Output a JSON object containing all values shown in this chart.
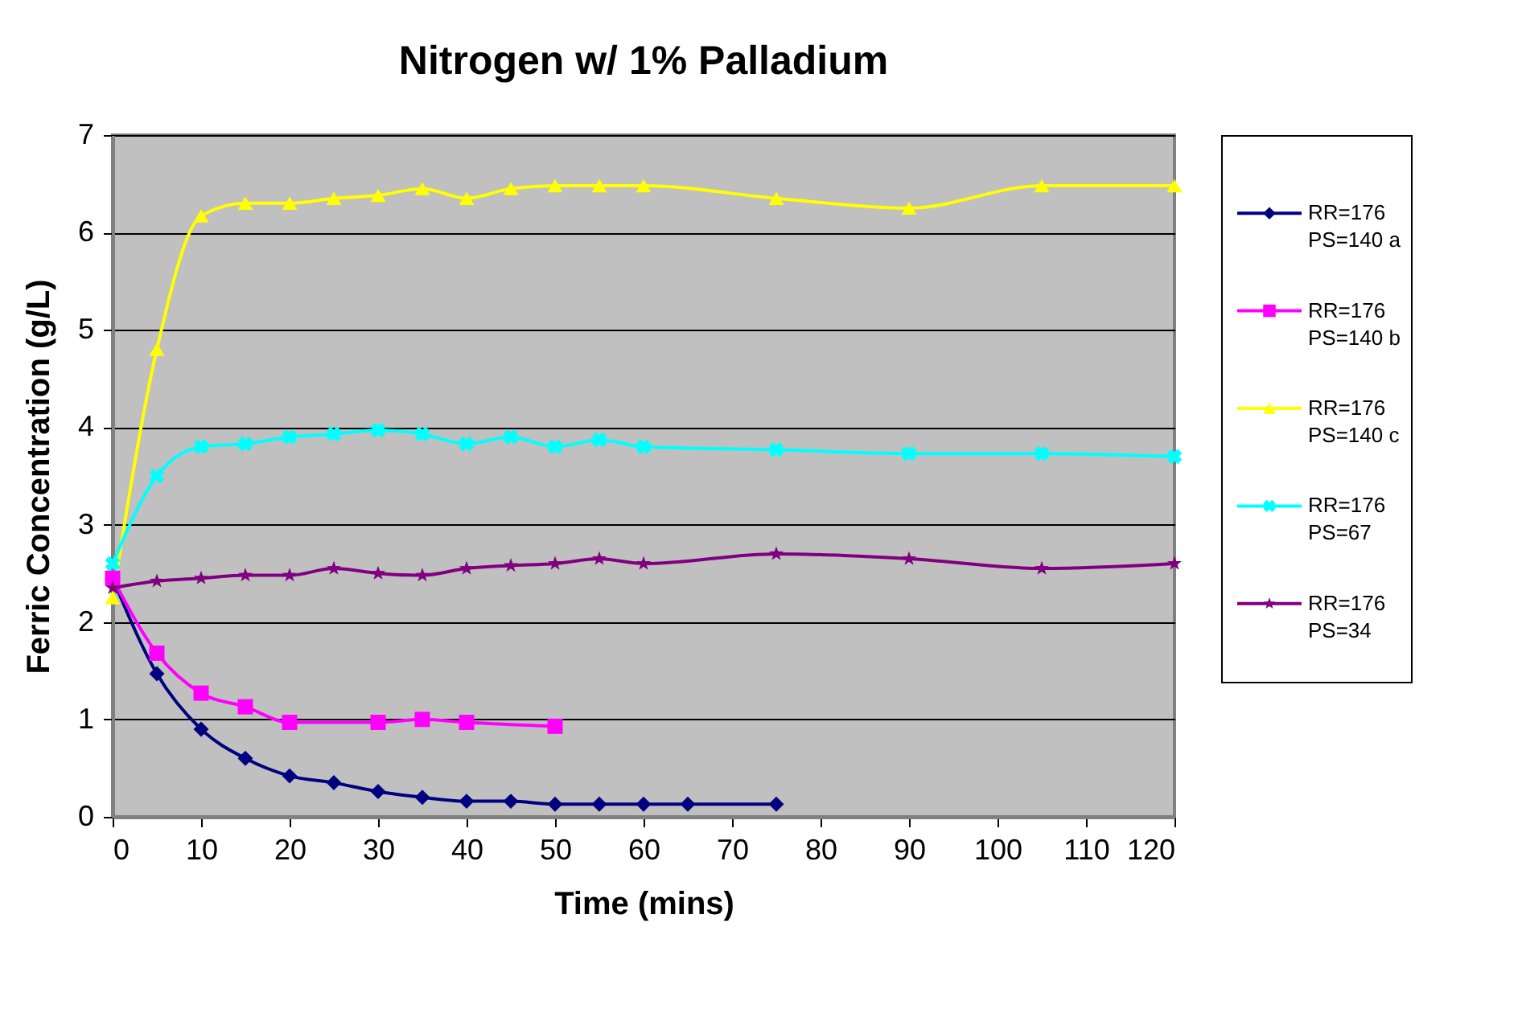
{
  "chart_data": {
    "type": "line",
    "title": "Nitrogen w/ 1% Palladium",
    "xlabel": "Time (mins)",
    "ylabel": "Ferric Concentration (g/L)",
    "xlim": [
      0,
      120
    ],
    "xticks": [
      0,
      10,
      20,
      30,
      40,
      50,
      60,
      70,
      80,
      90,
      100,
      110,
      120
    ],
    "ylim": [
      0,
      7
    ],
    "yticks": [
      0,
      1,
      2,
      3,
      4,
      5,
      6,
      7
    ],
    "grid": "y",
    "legend": "right",
    "series": [
      {
        "name": "RR=176\nPS=140 a",
        "color": "#000080",
        "marker": "diamond",
        "x": [
          0,
          5,
          10,
          15,
          20,
          25,
          30,
          35,
          40,
          45,
          50,
          55,
          60,
          65,
          75
        ],
        "values": [
          2.45,
          1.47,
          0.9,
          0.6,
          0.42,
          0.35,
          0.26,
          0.2,
          0.16,
          0.16,
          0.13,
          0.13,
          0.13,
          0.13,
          0.13
        ]
      },
      {
        "name": "RR=176\nPS=140 b",
        "color": "#ff00ff",
        "marker": "square",
        "x": [
          0,
          5,
          10,
          15,
          20,
          30,
          35,
          40,
          50
        ],
        "values": [
          2.45,
          1.68,
          1.27,
          1.13,
          0.97,
          0.97,
          1.0,
          0.97,
          0.93
        ]
      },
      {
        "name": "RR=176\nPS=140 c",
        "color": "#ffff00",
        "marker": "triangle",
        "x": [
          0,
          5,
          10,
          15,
          20,
          25,
          30,
          35,
          40,
          45,
          50,
          55,
          60,
          75,
          90,
          105,
          120
        ],
        "values": [
          2.25,
          4.8,
          6.17,
          6.3,
          6.3,
          6.35,
          6.38,
          6.45,
          6.35,
          6.45,
          6.48,
          6.48,
          6.48,
          6.35,
          6.25,
          6.48,
          6.48
        ]
      },
      {
        "name": "RR=176\nPS=67",
        "color": "#00ffff",
        "marker": "cross",
        "x": [
          0,
          5,
          10,
          15,
          20,
          25,
          30,
          35,
          40,
          45,
          50,
          55,
          60,
          75,
          90,
          105,
          120
        ],
        "values": [
          2.6,
          3.5,
          3.8,
          3.83,
          3.9,
          3.93,
          3.97,
          3.93,
          3.83,
          3.9,
          3.8,
          3.87,
          3.8,
          3.77,
          3.73,
          3.73,
          3.7
        ]
      },
      {
        "name": "RR=176\nPS=34",
        "color": "#800080",
        "marker": "star",
        "x": [
          0,
          5,
          10,
          15,
          20,
          25,
          30,
          35,
          40,
          45,
          50,
          55,
          60,
          75,
          90,
          105,
          120
        ],
        "values": [
          2.35,
          2.42,
          2.45,
          2.48,
          2.48,
          2.55,
          2.5,
          2.48,
          2.55,
          2.58,
          2.6,
          2.65,
          2.6,
          2.7,
          2.65,
          2.55,
          2.6
        ]
      }
    ]
  }
}
